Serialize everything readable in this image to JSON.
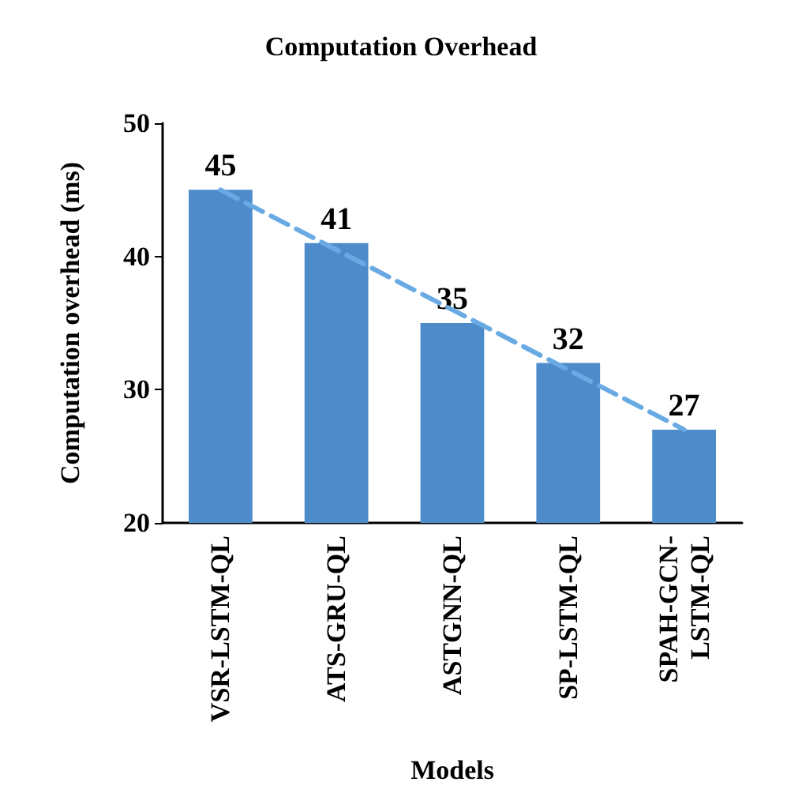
{
  "chart_data": {
    "type": "bar",
    "title": "Computation Overhead",
    "xlabel": "Models",
    "ylabel": "Computation overhead (ms)",
    "categories": [
      "VSR-LSTM-QL",
      "ATS-GRU-QL",
      "ASTGNN-QL",
      "SP-LSTM-QL",
      "SPAH-GCN-\nLSTM-QL"
    ],
    "series": [
      {
        "color": "#4d8bcb",
        "values": [
          45,
          41,
          35,
          32,
          27
        ],
        "value_labels": [
          "45",
          "41",
          "35",
          "32",
          "27"
        ]
      },
      {
        "type": "line",
        "color": "#6aaae4",
        "line_style": "dashed",
        "marker": "none",
        "x": [
          "VSR-LSTM-QL",
          "ATS-GRU-QL",
          "ASTGNN-QL",
          "SP-LSTM-QL",
          "SPAH-GCN-\nLSTM-QL"
        ],
        "values": [
          45,
          40.5,
          36,
          31.5,
          27
        ]
      }
    ],
    "ylim": [
      20,
      50
    ],
    "yticks": [
      20,
      30,
      40,
      50
    ],
    "grid": false
  }
}
